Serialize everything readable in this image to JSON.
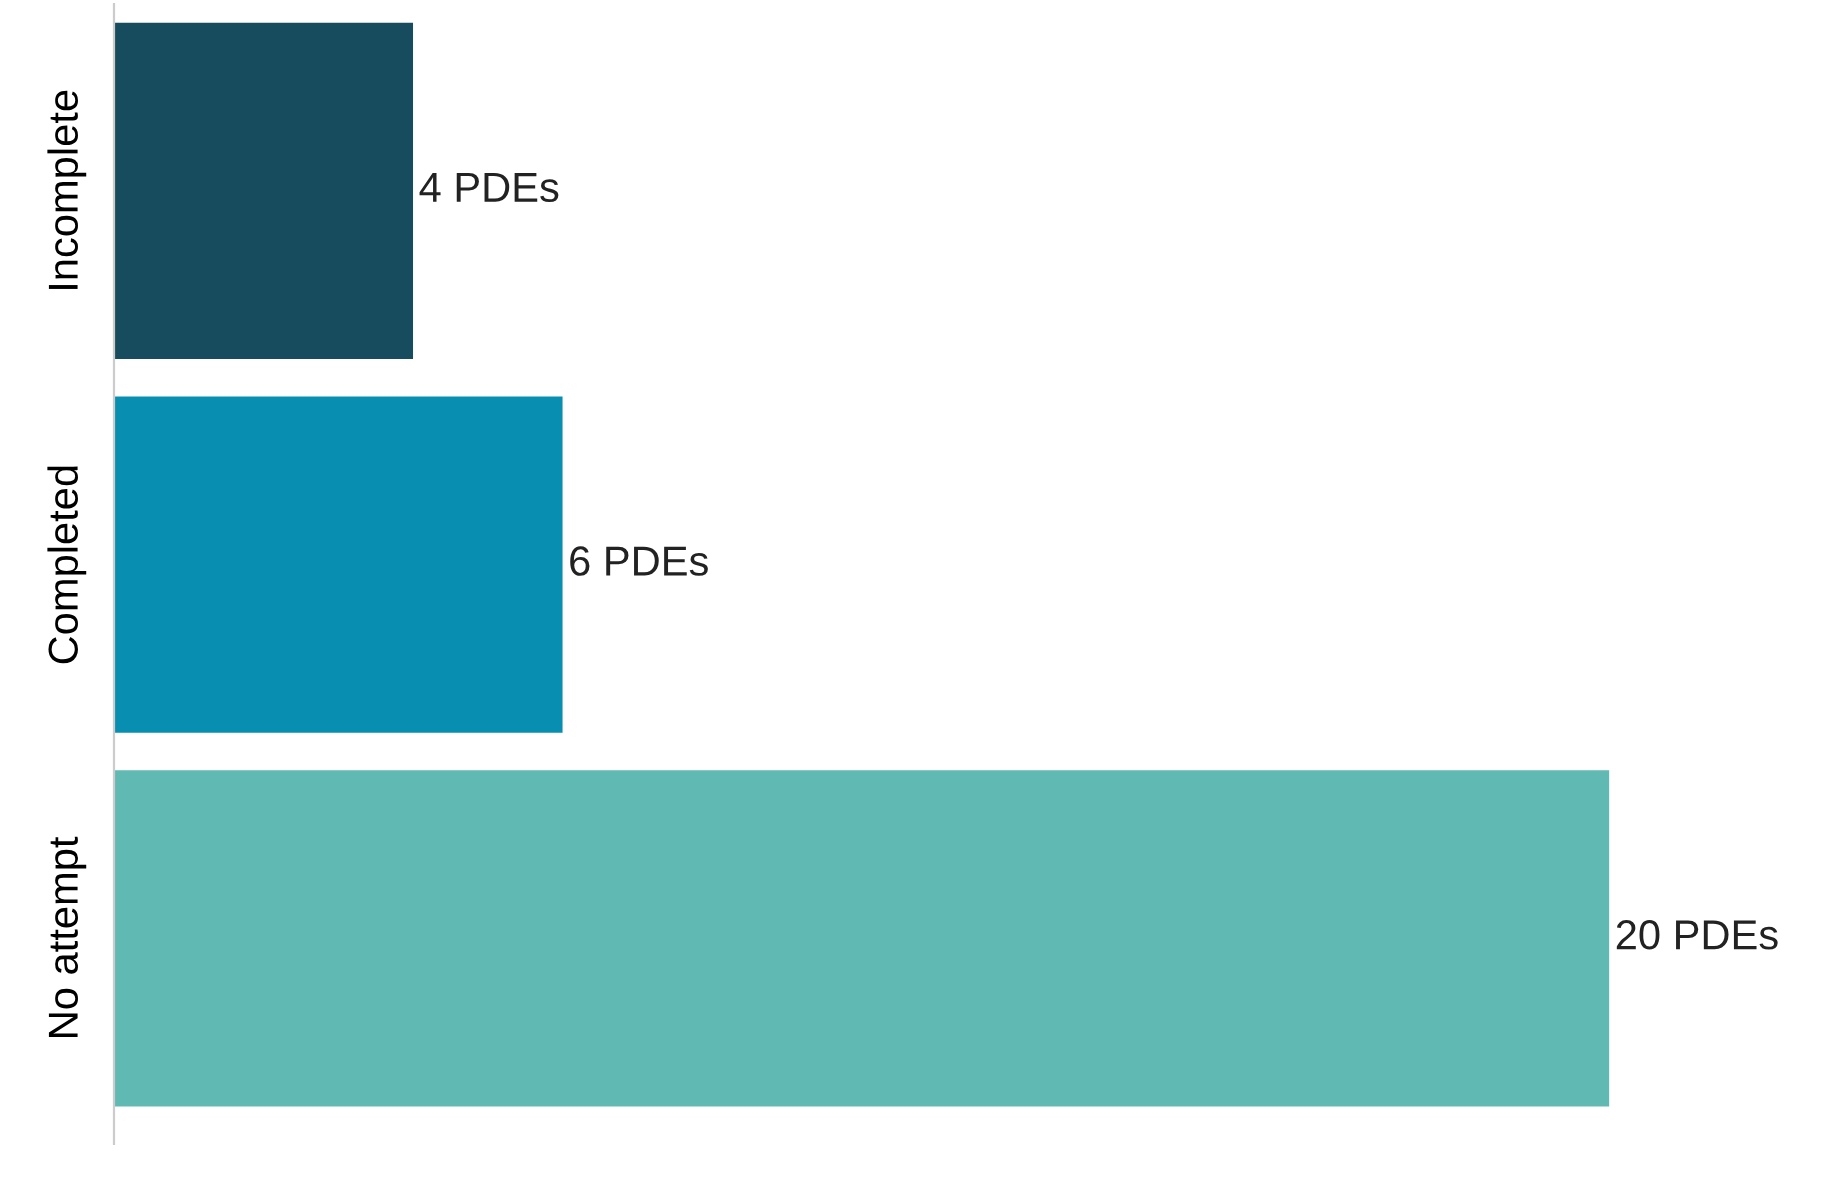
{
  "chart_data": {
    "type": "bar",
    "orientation": "horizontal",
    "categories": [
      "Incomplete",
      "Completed",
      "No attempt"
    ],
    "values": [
      4,
      6,
      20
    ],
    "colors": [
      "#174b5e",
      "#088eb1",
      "#60b9b3"
    ],
    "value_labels": [
      "4 PDEs",
      "6 PDEs",
      "20 PDEs"
    ],
    "grid": false,
    "legend": false
  }
}
